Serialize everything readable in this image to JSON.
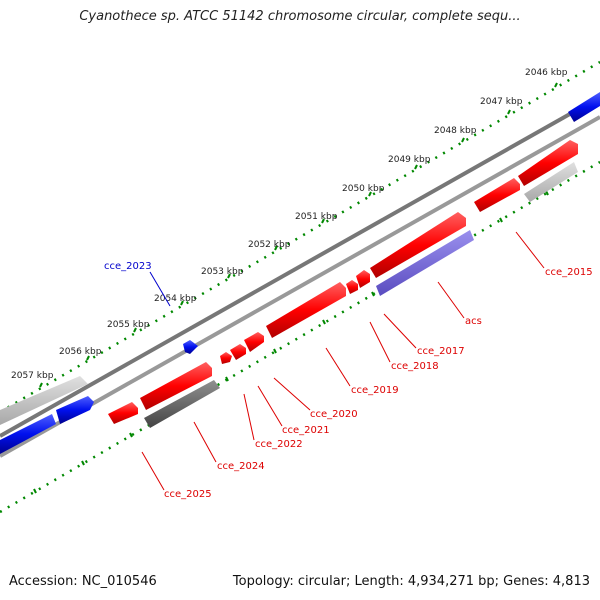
{
  "title": "Cyanothece sp. ATCC 51142 chromosome circular, complete sequ...",
  "footer": {
    "accession": "Accession: NC_010546",
    "summary": "Topology: circular; Length: 4,934,271 bp; Genes: 4,813"
  },
  "scale_labels": [
    "2046 kbp",
    "2047 kbp",
    "2048 kbp",
    "2049 kbp",
    "2050 kbp",
    "2051 kbp",
    "2052 kbp",
    "2053 kbp",
    "2054 kbp",
    "2055 kbp",
    "2056 kbp",
    "2057 kbp"
  ],
  "gene_labels": {
    "cce_2023": "cce_2023",
    "cce_2015": "cce_2015",
    "acs": "acs",
    "cce_2017": "cce_2017",
    "cce_2018": "cce_2018",
    "cce_2019": "cce_2019",
    "cce_2020": "cce_2020",
    "cce_2021": "cce_2021",
    "cce_2022": "cce_2022",
    "cce_2024": "cce_2024",
    "cce_2025": "cce_2025"
  },
  "colors": {
    "forward_gene": "#ff0000",
    "reverse_gene": "#0000ee",
    "rna_gene": "#7766dd",
    "pseudo_gene": "#666666",
    "pseudo_light": "#c0c0c0",
    "backbone": "#888888",
    "tick": "#008800",
    "label_red": "#dd0000",
    "label_blue": "#0000cc"
  }
}
